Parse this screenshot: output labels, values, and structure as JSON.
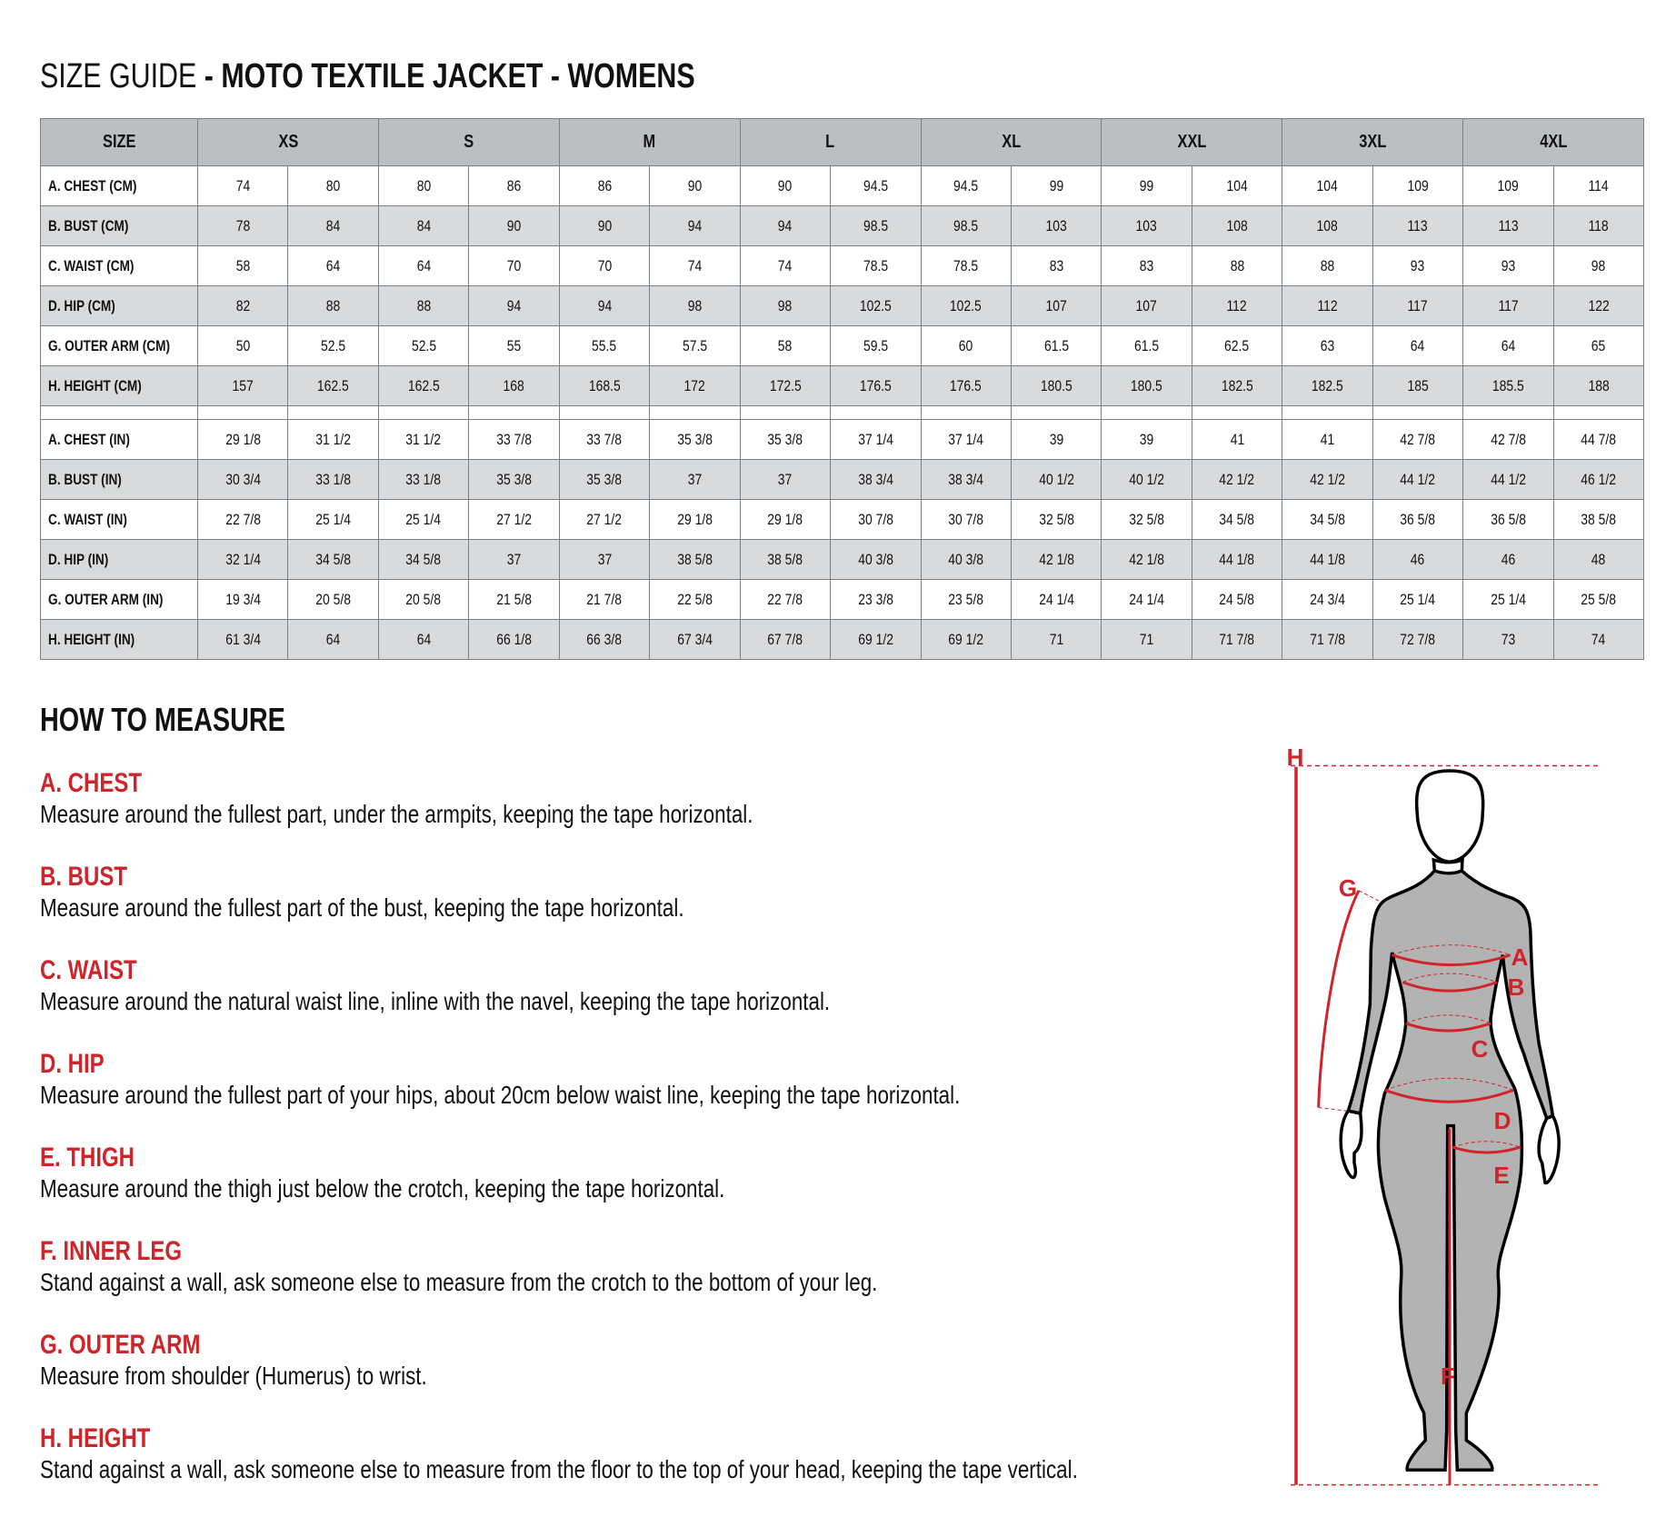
{
  "title": {
    "light": "SIZE GUIDE",
    "bold": " - MOTO TEXTILE JACKET - WOMENS"
  },
  "colors": {
    "accent_red": "#d0242b",
    "header_gray": "#bcbfc2",
    "alt_row_gray": "#d8dadc",
    "figure_gray": "#b3b3b3"
  },
  "table": {
    "size_header": "SIZE",
    "sizes": [
      "XS",
      "S",
      "M",
      "L",
      "XL",
      "XXL",
      "3XL",
      "4XL"
    ],
    "cm_rows": [
      {
        "label": "A. CHEST (CM)",
        "values": [
          "74",
          "80",
          "80",
          "86",
          "86",
          "90",
          "90",
          "94.5",
          "94.5",
          "99",
          "99",
          "104",
          "104",
          "109",
          "109",
          "114"
        ]
      },
      {
        "label": "B. BUST (CM)",
        "values": [
          "78",
          "84",
          "84",
          "90",
          "90",
          "94",
          "94",
          "98.5",
          "98.5",
          "103",
          "103",
          "108",
          "108",
          "113",
          "113",
          "118"
        ]
      },
      {
        "label": "C. WAIST (CM)",
        "values": [
          "58",
          "64",
          "64",
          "70",
          "70",
          "74",
          "74",
          "78.5",
          "78.5",
          "83",
          "83",
          "88",
          "88",
          "93",
          "93",
          "98"
        ]
      },
      {
        "label": "D. HIP (CM)",
        "values": [
          "82",
          "88",
          "88",
          "94",
          "94",
          "98",
          "98",
          "102.5",
          "102.5",
          "107",
          "107",
          "112",
          "112",
          "117",
          "117",
          "122"
        ]
      },
      {
        "label": "G. OUTER ARM (CM)",
        "values": [
          "50",
          "52.5",
          "52.5",
          "55",
          "55.5",
          "57.5",
          "58",
          "59.5",
          "60",
          "61.5",
          "61.5",
          "62.5",
          "63",
          "64",
          "64",
          "65"
        ]
      },
      {
        "label": "H. HEIGHT (CM)",
        "values": [
          "157",
          "162.5",
          "162.5",
          "168",
          "168.5",
          "172",
          "172.5",
          "176.5",
          "176.5",
          "180.5",
          "180.5",
          "182.5",
          "182.5",
          "185",
          "185.5",
          "188"
        ]
      }
    ],
    "in_rows": [
      {
        "label": "A. CHEST (IN)",
        "values": [
          "29 1/8",
          "31 1/2",
          "31 1/2",
          "33 7/8",
          "33 7/8",
          "35 3/8",
          "35 3/8",
          "37 1/4",
          "37 1/4",
          "39",
          "39",
          "41",
          "41",
          "42 7/8",
          "42 7/8",
          "44 7/8"
        ]
      },
      {
        "label": "B. BUST (IN)",
        "values": [
          "30 3/4",
          "33 1/8",
          "33 1/8",
          "35 3/8",
          "35 3/8",
          "37",
          "37",
          "38 3/4",
          "38 3/4",
          "40 1/2",
          "40 1/2",
          "42 1/2",
          "42 1/2",
          "44 1/2",
          "44 1/2",
          "46 1/2"
        ]
      },
      {
        "label": "C. WAIST (IN)",
        "values": [
          "22 7/8",
          "25 1/4",
          "25 1/4",
          "27 1/2",
          "27 1/2",
          "29 1/8",
          "29 1/8",
          "30 7/8",
          "30 7/8",
          "32 5/8",
          "32 5/8",
          "34 5/8",
          "34 5/8",
          "36 5/8",
          "36 5/8",
          "38 5/8"
        ]
      },
      {
        "label": "D. HIP (IN)",
        "values": [
          "32 1/4",
          "34 5/8",
          "34 5/8",
          "37",
          "37",
          "38 5/8",
          "38 5/8",
          "40 3/8",
          "40 3/8",
          "42 1/8",
          "42 1/8",
          "44 1/8",
          "44 1/8",
          "46",
          "46",
          "48"
        ]
      },
      {
        "label": "G. OUTER ARM (IN)",
        "values": [
          "19 3/4",
          "20 5/8",
          "20 5/8",
          "21 5/8",
          "21 7/8",
          "22 5/8",
          "22 7/8",
          "23 3/8",
          "23 5/8",
          "24 1/4",
          "24 1/4",
          "24 5/8",
          "24 3/4",
          "25 1/4",
          "25 1/4",
          "25 5/8"
        ]
      },
      {
        "label": "H. HEIGHT (IN)",
        "values": [
          "61 3/4",
          "64",
          "64",
          "66 1/8",
          "66 3/8",
          "67 3/4",
          "67 7/8",
          "69 1/2",
          "69 1/2",
          "71",
          "71",
          "71 7/8",
          "71 7/8",
          "72 7/8",
          "73",
          "74"
        ]
      }
    ]
  },
  "how_to_measure": {
    "heading": "HOW TO MEASURE",
    "sections": [
      {
        "title": "A. CHEST",
        "text": "Measure around the fullest part, under the armpits, keeping the tape horizontal."
      },
      {
        "title": "B. BUST",
        "text": "Measure around the fullest part of the bust, keeping the tape horizontal."
      },
      {
        "title": "C. WAIST",
        "text": "Measure around the natural waist line, inline with the navel, keeping the tape horizontal."
      },
      {
        "title": "D. HIP",
        "text": "Measure around the fullest part of your hips, about 20cm below waist line, keeping the tape horizontal."
      },
      {
        "title": "E. THIGH",
        "text": "Measure around the thigh just below the crotch, keeping the tape horizontal."
      },
      {
        "title": "F. INNER LEG",
        "text": "Stand against a wall, ask someone else to measure from the crotch to the bottom of your leg."
      },
      {
        "title": "G. OUTER ARM",
        "text": "Measure from shoulder (Humerus) to wrist."
      },
      {
        "title": "H. HEIGHT",
        "text": "Stand against a wall, ask someone else to measure from the floor to the top of your head, keeping the tape vertical."
      }
    ]
  },
  "figure": {
    "labels": {
      "A": "A",
      "B": "B",
      "C": "C",
      "D": "D",
      "E": "E",
      "F": "F",
      "G": "G",
      "H": "H"
    }
  }
}
